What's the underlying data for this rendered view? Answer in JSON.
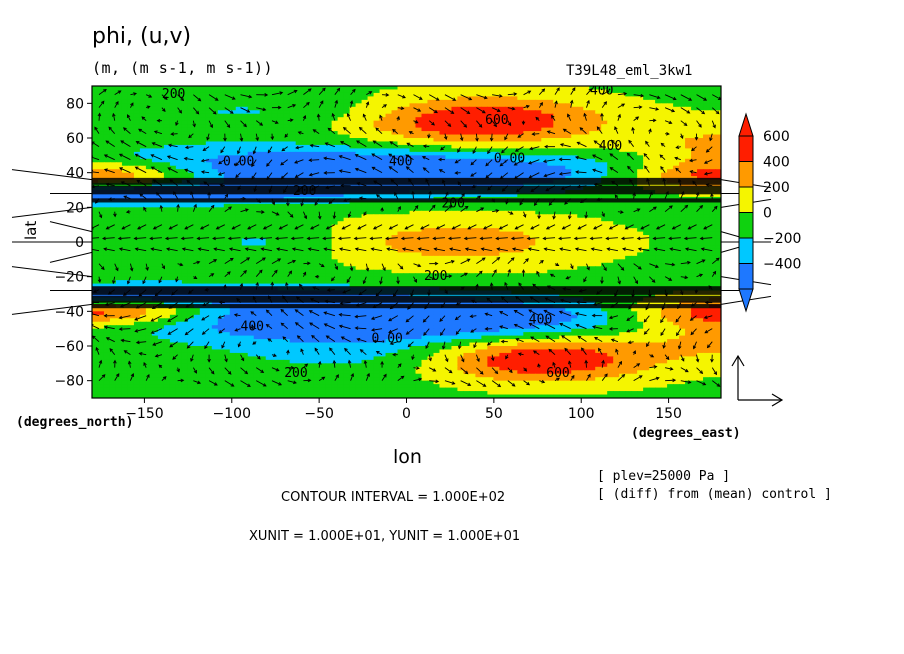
{
  "header": {
    "title": "phi, (u,v)",
    "units": "(m, (m s-1, m s-1))",
    "run": "T39L48_eml_3kw1"
  },
  "axes": {
    "y_name": "(degrees_north)",
    "x_name": "(degrees_east)",
    "x_label": "lon",
    "lat_label": "lat"
  },
  "info": {
    "contour": "CONTOUR INTERVAL = 1.000E+02",
    "units": "XUNIT = 1.000E+01, YUNIT = 1.000E+01",
    "plev": "[ plev=25000 Pa ]",
    "diff": "[ (diff) from (mean) control ]"
  },
  "colors": {
    "below": "#1e78ff",
    "bands": [
      "#1e78ff",
      "#00c8ff",
      "#0fd20f",
      "#f5f500",
      "#ff9a00",
      "#ff1e00"
    ],
    "above": "#ff1e00"
  },
  "chart_data": {
    "type": "heatmap",
    "x": {
      "min": -180,
      "max": 180,
      "ticks": [
        -150,
        -100,
        -50,
        0,
        50,
        100,
        150
      ]
    },
    "y": {
      "min": -90,
      "max": 90,
      "ticks": [
        -80,
        -60,
        -40,
        -20,
        0,
        20,
        40,
        60,
        80
      ]
    },
    "levels": [
      -400,
      -200,
      0,
      200,
      400,
      600
    ],
    "colorbar_ticks": [
      600,
      400,
      200,
      0,
      -200,
      -400
    ],
    "contour_labels": [
      {
        "lon": -140,
        "lat": 83,
        "text": "200"
      },
      {
        "lon": 45,
        "lat": 68,
        "text": "600"
      },
      {
        "lon": 105,
        "lat": 85,
        "text": "400"
      },
      {
        "lon": 110,
        "lat": 53,
        "text": "400"
      },
      {
        "lon": -105,
        "lat": 44,
        "text": "0.00"
      },
      {
        "lon": -10,
        "lat": 44,
        "text": "400"
      },
      {
        "lon": 50,
        "lat": 46,
        "text": "0.00"
      },
      {
        "lon": -65,
        "lat": 27,
        "text": "200"
      },
      {
        "lon": 20,
        "lat": 20,
        "text": "200"
      },
      {
        "lon": 10,
        "lat": -22,
        "text": "200"
      },
      {
        "lon": -95,
        "lat": -51,
        "text": "400"
      },
      {
        "lon": -20,
        "lat": -58,
        "text": "0.00"
      },
      {
        "lon": 70,
        "lat": -47,
        "text": "400"
      },
      {
        "lon": -70,
        "lat": -78,
        "text": "200"
      },
      {
        "lon": 80,
        "lat": -78,
        "text": "600"
      }
    ]
  }
}
